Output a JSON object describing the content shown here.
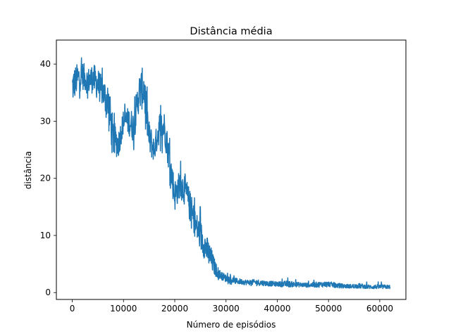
{
  "chart_data": {
    "type": "line",
    "title": "Distância média",
    "xlabel": "Número de episódios",
    "ylabel": "distância",
    "xlim": [
      -3100,
      65100
    ],
    "ylim": [
      -1.2,
      44.2
    ],
    "xticks": [
      0,
      10000,
      20000,
      30000,
      40000,
      50000,
      60000
    ],
    "yticks": [
      0,
      10,
      20,
      30,
      40
    ],
    "grid": false,
    "legend": "none",
    "series": [
      {
        "color": "#1f77b4",
        "x": [
          0,
          1000,
          2000,
          3000,
          4000,
          5000,
          6000,
          7000,
          8000,
          9000,
          10000,
          11000,
          12000,
          13000,
          14000,
          15000,
          16000,
          17000,
          18000,
          19000,
          20000,
          21000,
          22000,
          23000,
          24000,
          25000,
          26000,
          27000,
          28000,
          29000,
          30000,
          32000,
          34000,
          36000,
          38000,
          40000,
          42000,
          44000,
          46000,
          48000,
          50000,
          52000,
          54000,
          56000,
          58000,
          60000,
          62000
        ],
        "y": [
          36,
          37.5,
          38,
          37,
          37.5,
          36.5,
          35,
          33,
          27,
          26,
          30,
          30,
          29,
          35,
          36,
          27,
          25,
          29,
          29,
          23,
          17,
          19,
          18,
          15,
          12,
          10,
          8,
          6,
          4,
          3,
          2.5,
          2,
          1.8,
          1.8,
          1.6,
          1.5,
          1.5,
          1.4,
          1.3,
          1.4,
          1.5,
          1.2,
          1.1,
          1.1,
          1.0,
          1.0,
          1.0
        ],
        "min": [
          32,
          34,
          34,
          34,
          34,
          33,
          32,
          29,
          23,
          22,
          27,
          26,
          25,
          30,
          31,
          23,
          22,
          25,
          24,
          19,
          14,
          16,
          15,
          12,
          9,
          7,
          5,
          3.5,
          2.5,
          2,
          1.6,
          1.3,
          1.2,
          1.2,
          1.1,
          1.0,
          1.0,
          1.0,
          0.9,
          0.9,
          1.0,
          0.8,
          0.8,
          0.8,
          0.7,
          0.7,
          0.7
        ],
        "max": [
          41,
          41.5,
          41,
          40.5,
          41.5,
          41,
          39,
          41.5,
          32,
          29,
          33,
          33,
          33,
          39.5,
          42,
          32,
          28,
          33,
          32,
          27,
          22,
          23,
          23,
          20,
          16,
          15,
          12,
          10,
          6,
          4,
          3.5,
          2.8,
          2.5,
          2.7,
          2.4,
          2.2,
          2.6,
          2.2,
          2.0,
          2.3,
          2.3,
          2.0,
          1.8,
          2.3,
          1.7,
          1.9,
          1.6
        ]
      }
    ]
  }
}
